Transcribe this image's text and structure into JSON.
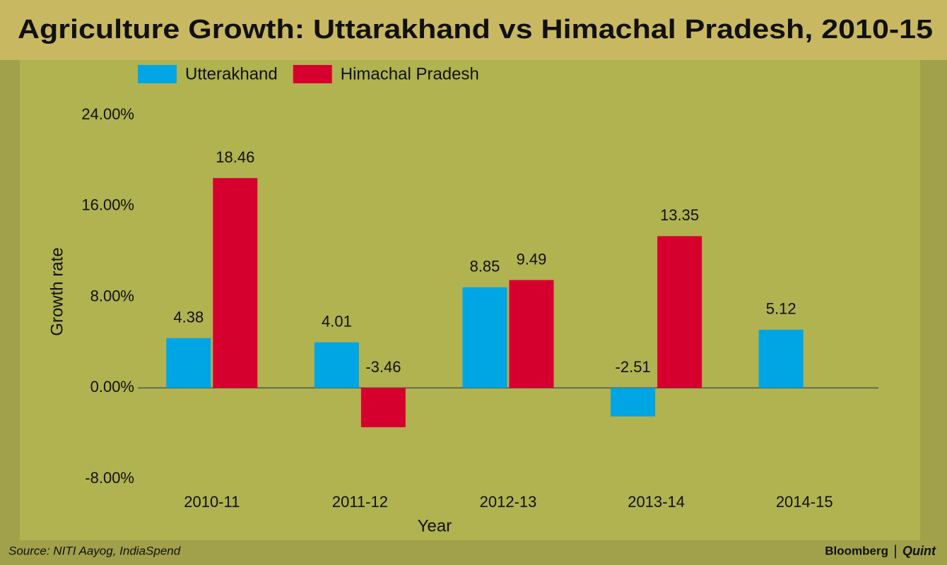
{
  "chart_data": {
    "type": "bar",
    "title": "Agriculture Growth: Uttarakhand vs Himachal Pradesh, 2010-15",
    "x_label": "Year",
    "y_label": "Growth rate",
    "categories": [
      "2010-11",
      "2011-12",
      "2012-13",
      "2013-14",
      "2014-15"
    ],
    "series": [
      {
        "name": "Utterakhand",
        "color": "#00a5e3",
        "values": [
          4.38,
          4.01,
          8.85,
          -2.51,
          5.12
        ]
      },
      {
        "name": "Himachal Pradesh",
        "color": "#d6002f",
        "values": [
          18.46,
          -3.46,
          9.49,
          13.35,
          null
        ]
      }
    ],
    "ylim": [
      -8,
      24
    ],
    "yticks": [
      {
        "value": -8,
        "label": "-8.00%"
      },
      {
        "value": 0,
        "label": "0.00%"
      },
      {
        "value": 8,
        "label": "8.00%"
      },
      {
        "value": 16,
        "label": "16.00%"
      },
      {
        "value": 24,
        "label": "24.00%"
      }
    ],
    "grid": false,
    "legend": "top",
    "source": "Source: NITI Aayog, IndiaSpend",
    "credits": [
      "Bloomberg",
      "|",
      "Quint"
    ]
  }
}
